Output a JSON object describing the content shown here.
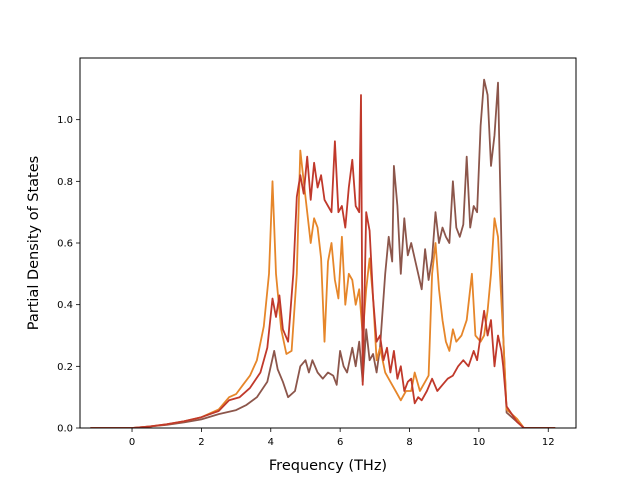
{
  "chart_data": {
    "type": "line",
    "title": "",
    "xlabel": "Frequency (THz)",
    "ylabel": "Partial Density of States",
    "xlim": [
      -1.5,
      12.8
    ],
    "ylim": [
      0.0,
      1.2
    ],
    "grid": false,
    "x_ticks": [
      0,
      2,
      4,
      6,
      8,
      10,
      12
    ],
    "x_tick_labels": [
      "0",
      "2",
      "4",
      "6",
      "8",
      "10",
      "12"
    ],
    "y_ticks": [
      0.0,
      0.2,
      0.4,
      0.6,
      0.8,
      1.0
    ],
    "y_tick_labels": [
      "0.0",
      "0.2",
      "0.4",
      "0.6",
      "0.8",
      "1.0"
    ],
    "series": [
      {
        "color": "#8c564b",
        "points": [
          [
            -1.2,
            0
          ],
          [
            0,
            0
          ],
          [
            0.5,
            0.005
          ],
          [
            1,
            0.01
          ],
          [
            1.5,
            0.018
          ],
          [
            2,
            0.028
          ],
          [
            2.5,
            0.045
          ],
          [
            3,
            0.058
          ],
          [
            3.3,
            0.075
          ],
          [
            3.6,
            0.1
          ],
          [
            3.9,
            0.15
          ],
          [
            4.1,
            0.25
          ],
          [
            4.2,
            0.19
          ],
          [
            4.35,
            0.15
          ],
          [
            4.5,
            0.1
          ],
          [
            4.7,
            0.12
          ],
          [
            4.85,
            0.2
          ],
          [
            5.0,
            0.22
          ],
          [
            5.1,
            0.18
          ],
          [
            5.2,
            0.22
          ],
          [
            5.35,
            0.18
          ],
          [
            5.5,
            0.16
          ],
          [
            5.65,
            0.18
          ],
          [
            5.8,
            0.17
          ],
          [
            5.9,
            0.14
          ],
          [
            6.0,
            0.25
          ],
          [
            6.1,
            0.2
          ],
          [
            6.2,
            0.18
          ],
          [
            6.35,
            0.26
          ],
          [
            6.45,
            0.2
          ],
          [
            6.55,
            0.28
          ],
          [
            6.65,
            0.15
          ],
          [
            6.75,
            0.32
          ],
          [
            6.85,
            0.22
          ],
          [
            6.95,
            0.24
          ],
          [
            7.05,
            0.18
          ],
          [
            7.15,
            0.26
          ],
          [
            7.3,
            0.5
          ],
          [
            7.4,
            0.62
          ],
          [
            7.5,
            0.54
          ],
          [
            7.55,
            0.85
          ],
          [
            7.65,
            0.72
          ],
          [
            7.75,
            0.5
          ],
          [
            7.85,
            0.68
          ],
          [
            7.95,
            0.56
          ],
          [
            8.05,
            0.6
          ],
          [
            8.15,
            0.55
          ],
          [
            8.25,
            0.5
          ],
          [
            8.35,
            0.45
          ],
          [
            8.45,
            0.58
          ],
          [
            8.55,
            0.48
          ],
          [
            8.65,
            0.55
          ],
          [
            8.75,
            0.7
          ],
          [
            8.85,
            0.6
          ],
          [
            8.95,
            0.65
          ],
          [
            9.05,
            0.62
          ],
          [
            9.15,
            0.6
          ],
          [
            9.25,
            0.8
          ],
          [
            9.35,
            0.65
          ],
          [
            9.45,
            0.62
          ],
          [
            9.55,
            0.66
          ],
          [
            9.65,
            0.88
          ],
          [
            9.75,
            0.65
          ],
          [
            9.85,
            0.72
          ],
          [
            9.95,
            0.7
          ],
          [
            10.05,
            0.98
          ],
          [
            10.15,
            1.13
          ],
          [
            10.25,
            1.08
          ],
          [
            10.35,
            0.85
          ],
          [
            10.45,
            0.95
          ],
          [
            10.55,
            1.12
          ],
          [
            10.65,
            0.6
          ],
          [
            10.7,
            0.3
          ],
          [
            10.8,
            0.05
          ],
          [
            11.1,
            0.02
          ],
          [
            11.3,
            0.0
          ],
          [
            12.2,
            0.0
          ]
        ]
      },
      {
        "color": "#e6862a",
        "points": [
          [
            -1.2,
            0
          ],
          [
            0,
            0
          ],
          [
            0.5,
            0.005
          ],
          [
            1,
            0.012
          ],
          [
            1.5,
            0.022
          ],
          [
            2,
            0.035
          ],
          [
            2.5,
            0.06
          ],
          [
            2.8,
            0.1
          ],
          [
            3.0,
            0.11
          ],
          [
            3.2,
            0.14
          ],
          [
            3.4,
            0.17
          ],
          [
            3.6,
            0.22
          ],
          [
            3.8,
            0.33
          ],
          [
            3.95,
            0.5
          ],
          [
            4.05,
            0.8
          ],
          [
            4.15,
            0.5
          ],
          [
            4.3,
            0.32
          ],
          [
            4.45,
            0.24
          ],
          [
            4.6,
            0.25
          ],
          [
            4.75,
            0.5
          ],
          [
            4.85,
            0.9
          ],
          [
            4.95,
            0.8
          ],
          [
            5.05,
            0.7
          ],
          [
            5.15,
            0.6
          ],
          [
            5.25,
            0.68
          ],
          [
            5.35,
            0.65
          ],
          [
            5.45,
            0.55
          ],
          [
            5.55,
            0.28
          ],
          [
            5.65,
            0.54
          ],
          [
            5.75,
            0.6
          ],
          [
            5.85,
            0.48
          ],
          [
            5.95,
            0.42
          ],
          [
            6.05,
            0.62
          ],
          [
            6.15,
            0.4
          ],
          [
            6.25,
            0.5
          ],
          [
            6.35,
            0.48
          ],
          [
            6.45,
            0.4
          ],
          [
            6.55,
            0.45
          ],
          [
            6.65,
            0.3
          ],
          [
            6.75,
            0.45
          ],
          [
            6.85,
            0.55
          ],
          [
            6.95,
            0.42
          ],
          [
            7.05,
            0.22
          ],
          [
            7.15,
            0.26
          ],
          [
            7.3,
            0.18
          ],
          [
            7.45,
            0.15
          ],
          [
            7.6,
            0.12
          ],
          [
            7.75,
            0.09
          ],
          [
            7.9,
            0.12
          ],
          [
            8.05,
            0.12
          ],
          [
            8.15,
            0.18
          ],
          [
            8.3,
            0.12
          ],
          [
            8.45,
            0.15
          ],
          [
            8.55,
            0.17
          ],
          [
            8.65,
            0.5
          ],
          [
            8.75,
            0.6
          ],
          [
            8.85,
            0.45
          ],
          [
            8.95,
            0.35
          ],
          [
            9.05,
            0.28
          ],
          [
            9.15,
            0.25
          ],
          [
            9.25,
            0.32
          ],
          [
            9.35,
            0.28
          ],
          [
            9.5,
            0.3
          ],
          [
            9.65,
            0.35
          ],
          [
            9.8,
            0.5
          ],
          [
            9.9,
            0.3
          ],
          [
            10.05,
            0.28
          ],
          [
            10.15,
            0.3
          ],
          [
            10.25,
            0.38
          ],
          [
            10.35,
            0.5
          ],
          [
            10.45,
            0.68
          ],
          [
            10.55,
            0.62
          ],
          [
            10.7,
            0.3
          ],
          [
            10.8,
            0.06
          ],
          [
            11.1,
            0.03
          ],
          [
            11.3,
            0.0
          ],
          [
            12.2,
            0.0
          ]
        ]
      },
      {
        "color": "#c0392b",
        "points": [
          [
            -1.2,
            0
          ],
          [
            0,
            0
          ],
          [
            0.5,
            0.005
          ],
          [
            1,
            0.012
          ],
          [
            1.5,
            0.022
          ],
          [
            2,
            0.035
          ],
          [
            2.5,
            0.055
          ],
          [
            2.8,
            0.09
          ],
          [
            3.1,
            0.1
          ],
          [
            3.4,
            0.13
          ],
          [
            3.7,
            0.18
          ],
          [
            3.9,
            0.26
          ],
          [
            4.05,
            0.42
          ],
          [
            4.15,
            0.36
          ],
          [
            4.25,
            0.43
          ],
          [
            4.35,
            0.32
          ],
          [
            4.5,
            0.28
          ],
          [
            4.65,
            0.5
          ],
          [
            4.75,
            0.75
          ],
          [
            4.85,
            0.82
          ],
          [
            4.95,
            0.76
          ],
          [
            5.05,
            0.88
          ],
          [
            5.15,
            0.74
          ],
          [
            5.25,
            0.86
          ],
          [
            5.35,
            0.78
          ],
          [
            5.45,
            0.82
          ],
          [
            5.55,
            0.74
          ],
          [
            5.65,
            0.72
          ],
          [
            5.75,
            0.7
          ],
          [
            5.85,
            0.93
          ],
          [
            5.95,
            0.7
          ],
          [
            6.05,
            0.72
          ],
          [
            6.15,
            0.65
          ],
          [
            6.25,
            0.78
          ],
          [
            6.35,
            0.87
          ],
          [
            6.45,
            0.72
          ],
          [
            6.55,
            0.7
          ],
          [
            6.6,
            1.08
          ],
          [
            6.65,
            0.14
          ],
          [
            6.75,
            0.7
          ],
          [
            6.85,
            0.64
          ],
          [
            6.95,
            0.42
          ],
          [
            7.05,
            0.28
          ],
          [
            7.15,
            0.3
          ],
          [
            7.25,
            0.22
          ],
          [
            7.35,
            0.26
          ],
          [
            7.45,
            0.18
          ],
          [
            7.55,
            0.25
          ],
          [
            7.65,
            0.16
          ],
          [
            7.75,
            0.2
          ],
          [
            7.85,
            0.12
          ],
          [
            7.95,
            0.15
          ],
          [
            8.05,
            0.16
          ],
          [
            8.15,
            0.08
          ],
          [
            8.25,
            0.1
          ],
          [
            8.35,
            0.09
          ],
          [
            8.5,
            0.12
          ],
          [
            8.65,
            0.16
          ],
          [
            8.8,
            0.12
          ],
          [
            8.95,
            0.14
          ],
          [
            9.1,
            0.16
          ],
          [
            9.25,
            0.17
          ],
          [
            9.4,
            0.2
          ],
          [
            9.55,
            0.22
          ],
          [
            9.7,
            0.2
          ],
          [
            9.85,
            0.25
          ],
          [
            9.95,
            0.22
          ],
          [
            10.05,
            0.3
          ],
          [
            10.15,
            0.38
          ],
          [
            10.25,
            0.3
          ],
          [
            10.35,
            0.35
          ],
          [
            10.45,
            0.2
          ],
          [
            10.55,
            0.3
          ],
          [
            10.65,
            0.25
          ],
          [
            10.7,
            0.2
          ],
          [
            10.8,
            0.07
          ],
          [
            11.1,
            0.02
          ],
          [
            11.3,
            0.0
          ],
          [
            12.2,
            0.0
          ]
        ]
      }
    ]
  }
}
